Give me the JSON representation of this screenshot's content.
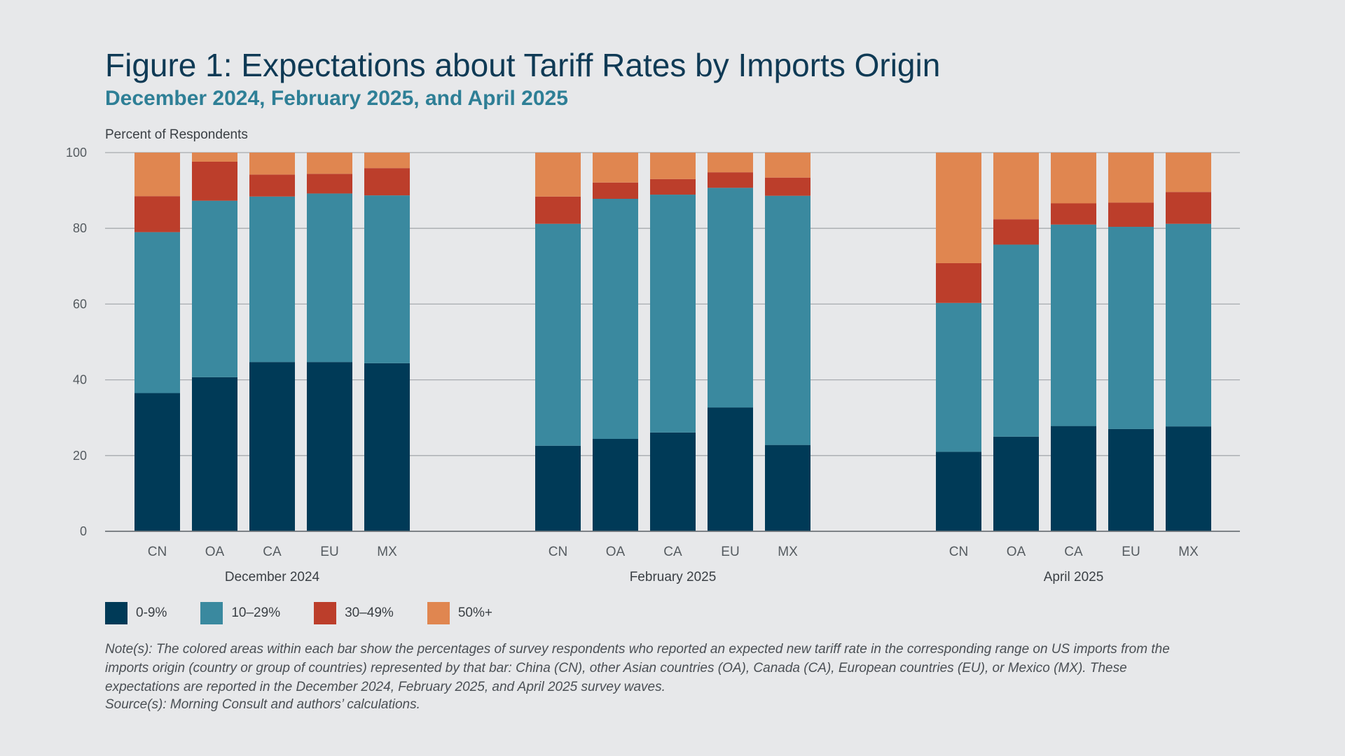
{
  "title": "Figure 1: Expectations about Tariff Rates by Imports Origin",
  "subtitle": "December 2024, February 2025, and April 2025",
  "note": "Note(s): The colored areas within each bar show the percentages of survey respondents who reported an expected new tariff rate in the corresponding range on US imports from the imports origin (country or group of countries) represented by that bar: China (CN), other Asian countries (OA), Canada (CA), European countries (EU), or Mexico (MX). These expectations are reported in the December 2024, February 2025, and April 2025 survey waves.",
  "source": "Source(s): Morning Consult and authors’ calculations.",
  "chart_data": {
    "type": "bar",
    "stacked": true,
    "ylabel": "Percent of Respondents",
    "ylim": [
      0,
      100
    ],
    "yticks": [
      0,
      20,
      40,
      60,
      80,
      100
    ],
    "grid": true,
    "legend_position": "bottom-left",
    "categories": [
      "CN",
      "OA",
      "CA",
      "EU",
      "MX"
    ],
    "groups": [
      {
        "name": "December 2024",
        "stacks": {
          "CN": [
            36.5,
            42.5,
            9.5,
            11.5
          ],
          "OA": [
            40.7,
            46.6,
            10.3,
            2.4
          ],
          "CA": [
            44.7,
            43.7,
            5.8,
            5.8
          ],
          "EU": [
            44.7,
            44.5,
            5.2,
            5.6
          ],
          "MX": [
            44.4,
            44.3,
            7.2,
            4.1
          ]
        }
      },
      {
        "name": "February 2025",
        "stacks": {
          "CN": [
            22.6,
            58.6,
            7.2,
            11.6
          ],
          "OA": [
            24.4,
            63.4,
            4.3,
            7.9
          ],
          "CA": [
            26.1,
            62.8,
            4.1,
            7.0
          ],
          "EU": [
            32.7,
            58.0,
            4.1,
            5.2
          ],
          "MX": [
            22.8,
            65.8,
            4.8,
            6.6
          ]
        }
      },
      {
        "name": "April 2025",
        "stacks": {
          "CN": [
            21.0,
            39.3,
            10.5,
            29.2
          ],
          "OA": [
            25.0,
            50.7,
            6.7,
            17.6
          ],
          "CA": [
            27.8,
            53.2,
            5.6,
            13.4
          ],
          "EU": [
            27.0,
            53.4,
            6.4,
            13.2
          ],
          "MX": [
            27.7,
            53.5,
            8.4,
            10.4
          ]
        }
      }
    ],
    "series": [
      {
        "name": "0-9%",
        "color": "#003a57"
      },
      {
        "name": "10–29%",
        "color": "#3a899f"
      },
      {
        "name": "30–49%",
        "color": "#bc3e2b"
      },
      {
        "name": "50%+",
        "color": "#e08650"
      }
    ]
  }
}
